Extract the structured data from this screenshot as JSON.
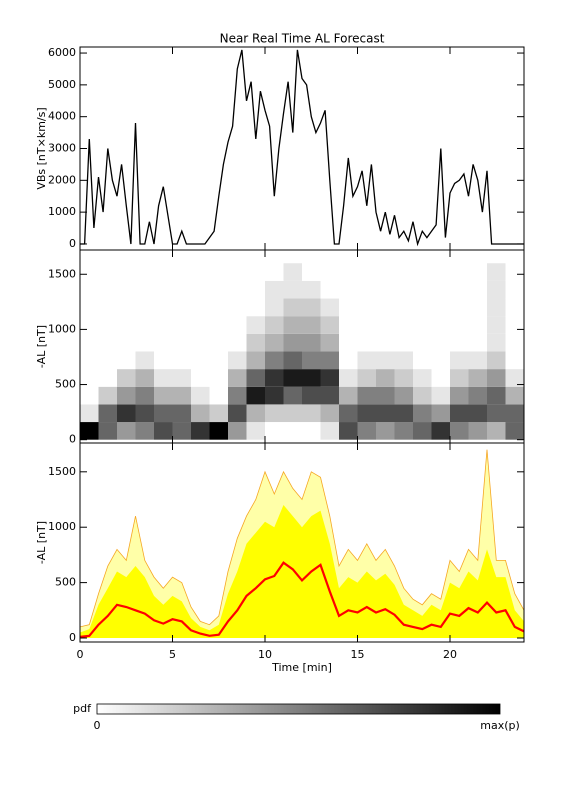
{
  "chart_data": [
    {
      "type": "line",
      "title": "Near Real Time AL Forecast",
      "ylabel": "VBs [nT×km/s]",
      "color": "#000000",
      "x": [
        0,
        0.25,
        0.5,
        0.75,
        1,
        1.25,
        1.5,
        1.75,
        2,
        2.25,
        2.5,
        2.75,
        3,
        3.25,
        3.5,
        3.75,
        4,
        4.25,
        4.5,
        4.75,
        5,
        5.25,
        5.5,
        5.75,
        6,
        6.25,
        6.5,
        6.75,
        7,
        7.25,
        7.5,
        7.75,
        8,
        8.25,
        8.5,
        8.75,
        9,
        9.25,
        9.5,
        9.75,
        10,
        10.25,
        10.5,
        10.75,
        11,
        11.25,
        11.5,
        11.75,
        12,
        12.25,
        12.5,
        12.75,
        13,
        13.25,
        13.5,
        13.75,
        14,
        14.25,
        14.5,
        14.75,
        15,
        15.25,
        15.5,
        15.75,
        16,
        16.25,
        16.5,
        16.75,
        17,
        17.25,
        17.5,
        17.75,
        18,
        18.25,
        18.5,
        18.75,
        19,
        19.25,
        19.5,
        19.75,
        20,
        20.25,
        20.5,
        20.75,
        21,
        21.25,
        21.5,
        21.75,
        22,
        22.25,
        22.5,
        22.75,
        23,
        23.25,
        23.5,
        23.75,
        24
      ],
      "values": [
        0,
        0,
        3300,
        500,
        2100,
        1000,
        3000,
        2000,
        1500,
        2500,
        1200,
        0,
        3800,
        0,
        0,
        700,
        0,
        1200,
        1800,
        900,
        0,
        0,
        400,
        0,
        0,
        0,
        0,
        0,
        200,
        400,
        1500,
        2500,
        3200,
        3700,
        5500,
        6100,
        4500,
        5100,
        3300,
        4800,
        4200,
        3700,
        1500,
        3000,
        4100,
        5100,
        3500,
        6100,
        5200,
        5000,
        4000,
        3500,
        3800,
        4200,
        2000,
        0,
        0,
        1200,
        2700,
        1500,
        1800,
        2300,
        1200,
        2500,
        1000,
        400,
        1000,
        300,
        900,
        200,
        400,
        100,
        700,
        0,
        400,
        200,
        400,
        600,
        3000,
        200,
        1600,
        1900,
        2000,
        2200,
        1500,
        2500,
        2000,
        1000,
        2300,
        0,
        0,
        0,
        0,
        0,
        0,
        0,
        0
      ],
      "xlim": [
        0,
        24
      ],
      "xticks": [
        0,
        5,
        10,
        15,
        20
      ],
      "show_xtick_labels": false,
      "ylim": [
        -190,
        6190
      ],
      "yticks": [
        0,
        1000,
        2000,
        3000,
        4000,
        5000,
        6000
      ]
    },
    {
      "type": "heatmap",
      "ylabel": "-AL [nT]",
      "colors": [
        "#ffffff",
        "#000000"
      ],
      "x_edges": [
        0,
        1,
        2,
        3,
        4,
        5,
        6,
        7,
        8,
        9,
        10,
        11,
        12,
        13,
        14,
        15,
        16,
        17,
        18,
        19,
        20,
        21,
        22,
        23,
        24
      ],
      "y_edges": [
        0,
        160,
        320,
        480,
        640,
        800,
        960,
        1120,
        1280,
        1440,
        1600
      ],
      "z": [
        [
          1.0,
          0.1,
          0,
          0,
          0,
          0,
          0,
          0,
          0,
          0
        ],
        [
          0.6,
          0.6,
          0.2,
          0,
          0,
          0,
          0,
          0,
          0,
          0
        ],
        [
          0.4,
          0.8,
          0.4,
          0.2,
          0,
          0,
          0,
          0,
          0,
          0
        ],
        [
          0.5,
          0.7,
          0.5,
          0.3,
          0.1,
          0,
          0,
          0,
          0,
          0
        ],
        [
          0.7,
          0.6,
          0.3,
          0.1,
          0,
          0,
          0,
          0,
          0,
          0
        ],
        [
          0.6,
          0.6,
          0.3,
          0.1,
          0,
          0,
          0,
          0,
          0,
          0
        ],
        [
          0.8,
          0.3,
          0.1,
          0,
          0,
          0,
          0,
          0,
          0,
          0
        ],
        [
          1.0,
          0.2,
          0,
          0,
          0,
          0,
          0,
          0,
          0,
          0
        ],
        [
          0.4,
          0.7,
          0.5,
          0.3,
          0.1,
          0,
          0,
          0,
          0,
          0
        ],
        [
          0.1,
          0.3,
          0.9,
          0.6,
          0.3,
          0.2,
          0.1,
          0,
          0,
          0
        ],
        [
          0,
          0.2,
          0.8,
          0.8,
          0.5,
          0.3,
          0.2,
          0.1,
          0.1,
          0
        ],
        [
          0,
          0.2,
          0.6,
          0.9,
          0.6,
          0.4,
          0.3,
          0.2,
          0.1,
          0.1
        ],
        [
          0,
          0.2,
          0.7,
          0.9,
          0.5,
          0.4,
          0.3,
          0.2,
          0.1,
          0
        ],
        [
          0.1,
          0.3,
          0.7,
          0.8,
          0.5,
          0.3,
          0.2,
          0.1,
          0,
          0
        ],
        [
          0.7,
          0.6,
          0.3,
          0.1,
          0,
          0,
          0,
          0,
          0,
          0
        ],
        [
          0.5,
          0.7,
          0.5,
          0.2,
          0.1,
          0,
          0,
          0,
          0,
          0
        ],
        [
          0.4,
          0.7,
          0.5,
          0.3,
          0.1,
          0,
          0,
          0,
          0,
          0
        ],
        [
          0.5,
          0.7,
          0.4,
          0.2,
          0.1,
          0,
          0,
          0,
          0,
          0
        ],
        [
          0.6,
          0.5,
          0.2,
          0.1,
          0,
          0,
          0,
          0,
          0,
          0
        ],
        [
          0.8,
          0.4,
          0.1,
          0,
          0,
          0,
          0,
          0,
          0,
          0
        ],
        [
          0.5,
          0.7,
          0.4,
          0.2,
          0.1,
          0,
          0,
          0,
          0,
          0
        ],
        [
          0.4,
          0.7,
          0.5,
          0.3,
          0.1,
          0,
          0,
          0,
          0,
          0
        ],
        [
          0.3,
          0.6,
          0.6,
          0.4,
          0.2,
          0.1,
          0.1,
          0.1,
          0.1,
          0.1
        ],
        [
          0.6,
          0.6,
          0.3,
          0.1,
          0,
          0,
          0,
          0,
          0,
          0
        ]
      ],
      "xlim": [
        0,
        24
      ],
      "xticks": [
        0,
        5,
        10,
        15,
        20
      ],
      "show_xtick_labels": false,
      "ylim": [
        -30,
        1720
      ],
      "yticks": [
        0,
        500,
        1000,
        1500
      ]
    },
    {
      "type": "band",
      "ylabel": "-AL [nT]",
      "xlabel": "Time [min]",
      "x": [
        0,
        0.5,
        1,
        1.5,
        2,
        2.5,
        3,
        3.5,
        4,
        4.5,
        5,
        5.5,
        6,
        6.5,
        7,
        7.5,
        8,
        8.5,
        9,
        9.5,
        10,
        10.5,
        11,
        11.5,
        12,
        12.5,
        13,
        13.5,
        14,
        14.5,
        15,
        15.5,
        16,
        16.5,
        17,
        17.5,
        18,
        18.5,
        19,
        19.5,
        20,
        20.5,
        21,
        21.5,
        22,
        22.5,
        23,
        23.5,
        24
      ],
      "series": [
        {
          "color": "#ffffa8",
          "line_color": "#f5a623",
          "values": [
            100,
            120,
            400,
            650,
            800,
            700,
            1100,
            700,
            550,
            450,
            550,
            500,
            280,
            150,
            120,
            200,
            600,
            900,
            1100,
            1250,
            1500,
            1300,
            1500,
            1350,
            1250,
            1500,
            1450,
            1100,
            650,
            800,
            700,
            850,
            700,
            800,
            650,
            450,
            350,
            300,
            400,
            350,
            700,
            600,
            800,
            700,
            1700,
            700,
            700,
            400,
            250
          ]
        },
        {
          "color": "#ffff00",
          "values": [
            50,
            80,
            300,
            450,
            600,
            550,
            650,
            550,
            380,
            300,
            380,
            330,
            180,
            100,
            70,
            120,
            400,
            600,
            850,
            950,
            1050,
            1000,
            1200,
            1100,
            1000,
            1100,
            1150,
            850,
            450,
            550,
            500,
            600,
            520,
            580,
            480,
            300,
            250,
            200,
            300,
            250,
            500,
            450,
            600,
            520,
            800,
            550,
            550,
            250,
            150
          ]
        },
        {
          "color": "#ff0000",
          "values": [
            10,
            20,
            120,
            200,
            300,
            280,
            250,
            220,
            160,
            130,
            170,
            150,
            70,
            40,
            20,
            30,
            150,
            250,
            380,
            450,
            530,
            560,
            680,
            620,
            520,
            600,
            660,
            420,
            200,
            250,
            230,
            280,
            230,
            260,
            210,
            120,
            100,
            80,
            120,
            100,
            220,
            200,
            270,
            230,
            320,
            230,
            250,
            100,
            60
          ]
        }
      ],
      "xlim": [
        0,
        24
      ],
      "xticks": [
        0,
        5,
        10,
        15,
        20
      ],
      "show_xtick_labels": true,
      "ylim": [
        -36,
        1760
      ],
      "yticks": [
        0,
        500,
        1000,
        1500
      ]
    }
  ],
  "colorbar": {
    "label": "pdf",
    "min_label": "0",
    "max_label": "max(p)",
    "colors": [
      "#ffffff",
      "#000000"
    ]
  }
}
